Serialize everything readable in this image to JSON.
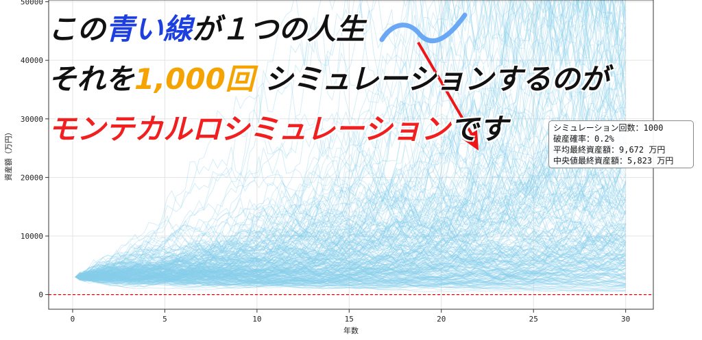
{
  "overlay": {
    "line1": {
      "pre": "この",
      "highlight": "青い線",
      "post": "が１つの人生"
    },
    "line2": {
      "pre": "それを",
      "highlight": "1,000回",
      "post": " シミュレーションするのが"
    },
    "line3": {
      "highlight": "モンテカルロシミュレーション",
      "post": "です"
    }
  },
  "stats": {
    "runs": "シミュレーション回数：1000",
    "ruin_rate": "破産確率：0.2%",
    "mean_final": "平均最終資産額：9,672 万円",
    "median_final": "中央値最終資産額：5,823 万円"
  },
  "colors": {
    "path": "#87ceeb",
    "zero_line": "#e8000b",
    "arrow": "#f01515",
    "wave": "#6aa8f5"
  },
  "chart_data": {
    "type": "line",
    "xlabel": "年数",
    "ylabel": "資産額（万円）",
    "xlim": [
      -1.3,
      31.5
    ],
    "ylim": [
      -2500,
      50300
    ],
    "xticks": [
      0,
      5,
      10,
      15,
      20,
      25,
      30
    ],
    "yticks": [
      0,
      10000,
      20000,
      30000,
      40000,
      50000
    ],
    "grid": true,
    "series_count": 1000,
    "start_value": 3000,
    "reference_line": {
      "y": 0,
      "style": "dashed"
    },
    "mean_final": 9672,
    "median_final": 5823,
    "ruin_probability_pct": 0.2
  }
}
